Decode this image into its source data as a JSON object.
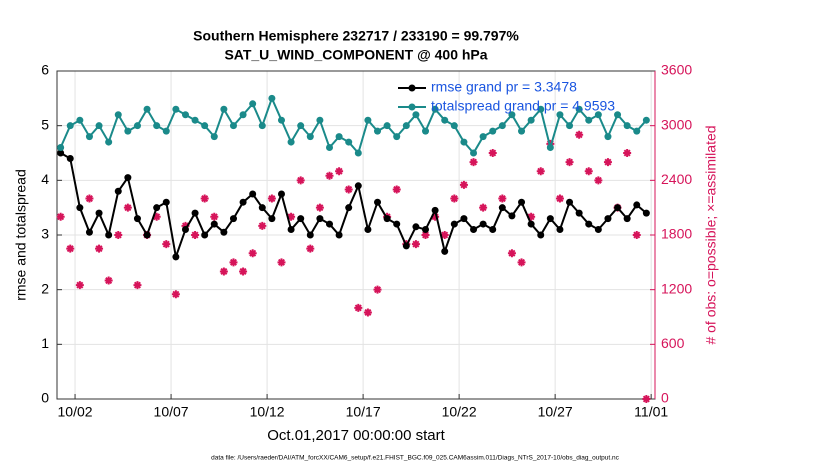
{
  "chart_data": {
    "type": "line",
    "title": "Southern Hemisphere 232717 / 233190 = 99.797%",
    "subtitle": "SAT_U_WIND_COMPONENT @ 400 hPa",
    "xlabel": "Oct.01,2017 00:00:00 start",
    "ylabel": "rmse and totalspread",
    "y2label": "# of obs: o=possible; ×=assimilated",
    "footnote": "data file: /Users/raeder/DAI/ATM_forcXX/CAM6_setup/f.e21.FHIST_BGC.f09_025.CAM6assim.011/Diags_NTrS_2017-10/obs_diag_output.nc",
    "x": [
      1.25,
      1.75,
      2.25,
      2.75,
      3.25,
      3.75,
      4.25,
      4.75,
      5.25,
      5.75,
      6.25,
      6.75,
      7.25,
      7.75,
      8.25,
      8.75,
      9.25,
      9.75,
      10.25,
      10.75,
      11.25,
      11.75,
      12.25,
      12.75,
      13.25,
      13.75,
      14.25,
      14.75,
      15.25,
      15.75,
      16.25,
      16.75,
      17.25,
      17.75,
      18.25,
      18.75,
      19.25,
      19.75,
      20.25,
      20.75,
      21.25,
      21.75,
      22.25,
      22.75,
      23.25,
      23.75,
      24.25,
      24.75,
      25.25,
      25.75,
      26.25,
      26.75,
      27.25,
      27.75,
      28.25,
      28.75,
      29.25,
      29.75,
      30.25,
      30.75,
      31.25,
      31.75
    ],
    "series": [
      {
        "name": "rmse grand pr = 3.3478",
        "color": "#000000",
        "values": [
          4.5,
          4.4,
          3.5,
          3.05,
          3.4,
          3.0,
          3.8,
          4.05,
          3.3,
          3.0,
          3.5,
          3.6,
          2.6,
          3.1,
          3.4,
          3.0,
          3.2,
          3.05,
          3.3,
          3.6,
          3.75,
          3.5,
          3.3,
          3.75,
          3.1,
          3.3,
          3.0,
          3.3,
          3.2,
          3.0,
          3.5,
          3.9,
          3.1,
          3.6,
          3.3,
          3.2,
          2.8,
          3.15,
          3.1,
          3.45,
          2.7,
          3.2,
          3.3,
          3.1,
          3.2,
          3.1,
          3.5,
          3.35,
          3.6,
          3.2,
          3.0,
          3.3,
          3.1,
          3.6,
          3.4,
          3.2,
          3.1,
          3.3,
          3.5,
          3.3,
          3.55,
          3.4
        ]
      },
      {
        "name": "totalspread grand pr = 4.9593",
        "color": "#1a8a8a",
        "values": [
          4.6,
          5.0,
          5.1,
          4.8,
          5.0,
          4.7,
          5.2,
          4.9,
          5.0,
          5.3,
          5.0,
          4.9,
          5.3,
          5.2,
          5.1,
          5.0,
          4.8,
          5.3,
          5.0,
          5.2,
          5.4,
          5.0,
          5.5,
          5.1,
          4.7,
          5.0,
          4.8,
          5.1,
          4.6,
          4.8,
          4.7,
          4.5,
          5.1,
          4.9,
          5.0,
          4.8,
          5.0,
          5.2,
          4.9,
          5.3,
          5.1,
          5.0,
          4.7,
          4.5,
          4.8,
          4.9,
          5.0,
          5.2,
          4.9,
          5.1,
          5.3,
          4.6,
          5.2,
          5.0,
          5.3,
          5.1,
          5.2,
          4.8,
          5.2,
          5.0,
          4.9,
          5.1
        ]
      },
      {
        "color": "#d6145a",
        "axis": "y2",
        "values": [
          2000,
          1650,
          1250,
          2200,
          1650,
          1300,
          1800,
          2100,
          1250,
          1800,
          2000,
          1700,
          1150,
          1900,
          1800,
          2200,
          2000,
          1400,
          1500,
          1400,
          1600,
          1900,
          2200,
          1500,
          2000,
          2400,
          1650,
          2100,
          2450,
          2500,
          2300,
          1000,
          950,
          1200,
          2000,
          2300,
          1700,
          1700,
          1800,
          2000,
          1800,
          2200,
          2350,
          2600,
          2100,
          2700,
          2200,
          1600,
          1500,
          2000,
          2500,
          2800,
          2200,
          2600,
          2900,
          2500,
          2400,
          2600,
          2100,
          2700,
          1800,
          0
        ]
      }
    ],
    "xlim": [
      1.06,
      32.2
    ],
    "xticks": [
      {
        "value": 2,
        "label": "10/02"
      },
      {
        "value": 7,
        "label": "10/07"
      },
      {
        "value": 12,
        "label": "10/12"
      },
      {
        "value": 17,
        "label": "10/17"
      },
      {
        "value": 22,
        "label": "10/22"
      },
      {
        "value": 27,
        "label": "10/27"
      },
      {
        "value": 32,
        "label": "11/01"
      }
    ],
    "ylim": [
      0,
      6
    ],
    "yticks": [
      0,
      1,
      2,
      3,
      4,
      5,
      6
    ],
    "y2lim": [
      0,
      3600
    ],
    "y2ticks": [
      0,
      600,
      1200,
      1800,
      2400,
      3000,
      3600
    ],
    "y2color": "#d6145a",
    "legend_color": "#1a55e0",
    "grid": true,
    "legend": "upper right"
  }
}
